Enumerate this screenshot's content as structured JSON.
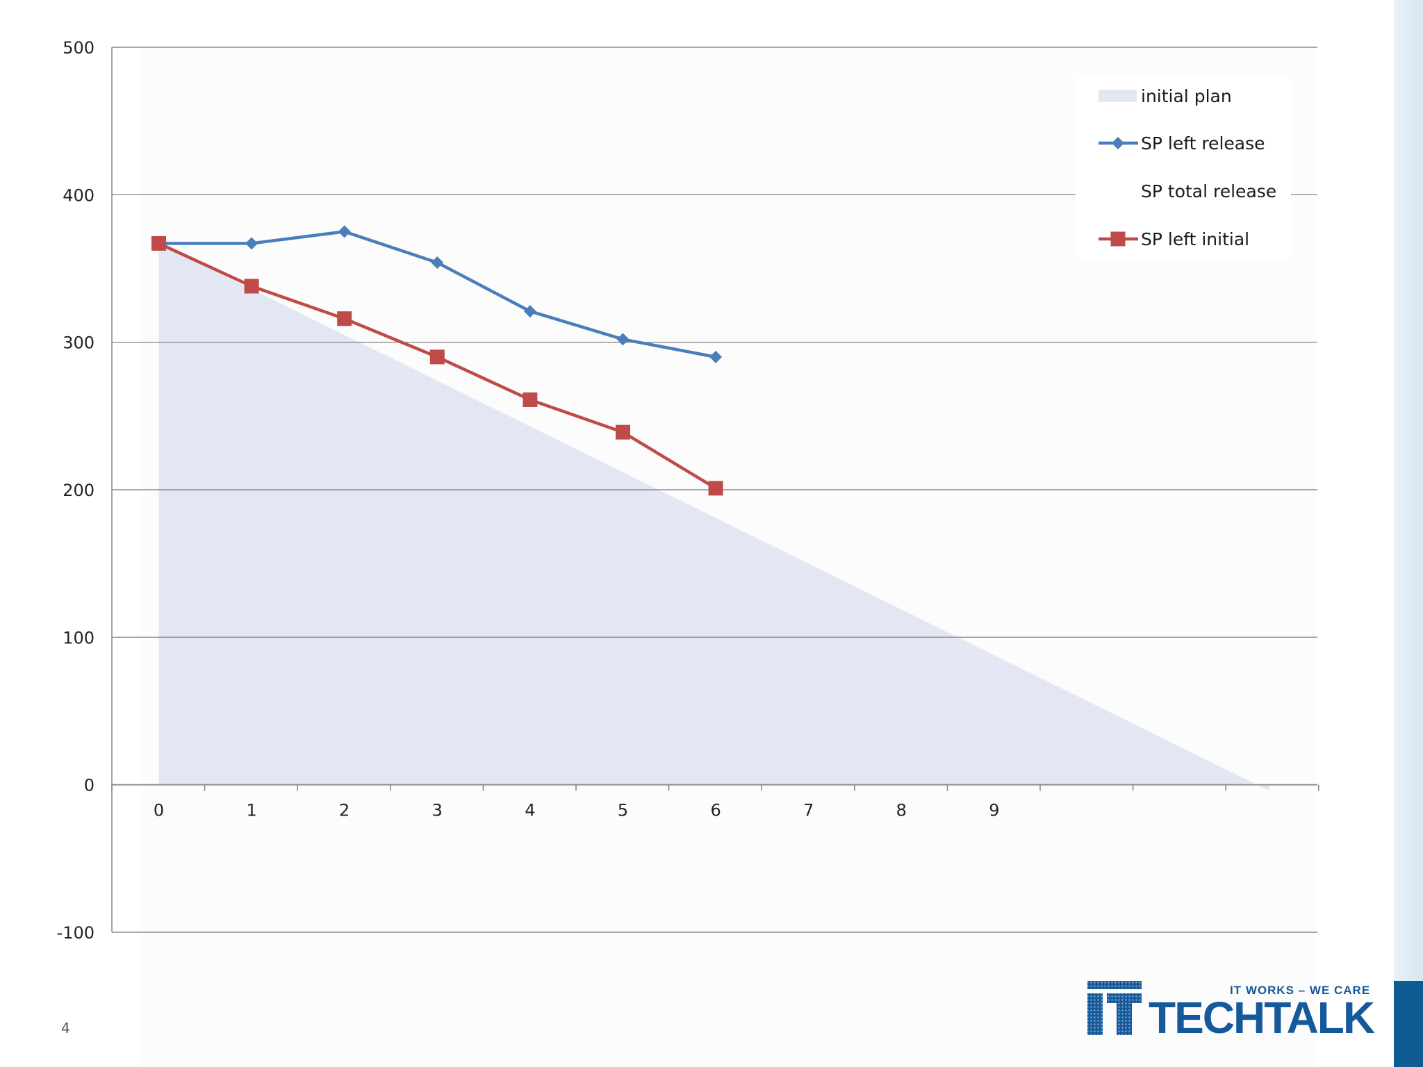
{
  "slide": {
    "page_number": "4"
  },
  "logo": {
    "tagline": "IT WORKS – WE CARE",
    "wordmark": "TECHTALK"
  },
  "colors": {
    "initial_plan_fill": "#e3e6f3",
    "sp_left_release": "#4a7ebb",
    "sp_left_initial": "#be4b48",
    "gridline": "#8c8c8c",
    "brand": "#15599b"
  },
  "chart_data": {
    "type": "line",
    "title": "",
    "xlabel": "",
    "ylabel": "",
    "x_categories": [
      "0",
      "1",
      "2",
      "3",
      "4",
      "5",
      "6",
      "7",
      "8",
      "9",
      "",
      "",
      ""
    ],
    "ylim": [
      -100,
      500
    ],
    "y_ticks": [
      "500",
      "400",
      "300",
      "200",
      "100",
      "0",
      "-100"
    ],
    "y_tick_values": [
      500,
      400,
      300,
      200,
      100,
      0,
      -100
    ],
    "grid": true,
    "legend_position": "top-right",
    "series": [
      {
        "name": "initial plan",
        "kind": "area",
        "x": [
          0,
          11.96
        ],
        "values": [
          367,
          -4
        ]
      },
      {
        "name": "SP left release",
        "kind": "line",
        "marker": "diamond",
        "x": [
          0,
          1,
          2,
          3,
          4,
          5,
          6
        ],
        "values": [
          367,
          367,
          375,
          354,
          321,
          302,
          290
        ]
      },
      {
        "name": "SP total release",
        "kind": "line",
        "marker": "none",
        "x": [],
        "values": []
      },
      {
        "name": "SP left initial",
        "kind": "line",
        "marker": "square",
        "x": [
          0,
          1,
          2,
          3,
          4,
          5,
          6
        ],
        "values": [
          367,
          338,
          316,
          290,
          261,
          239,
          201
        ]
      }
    ]
  }
}
